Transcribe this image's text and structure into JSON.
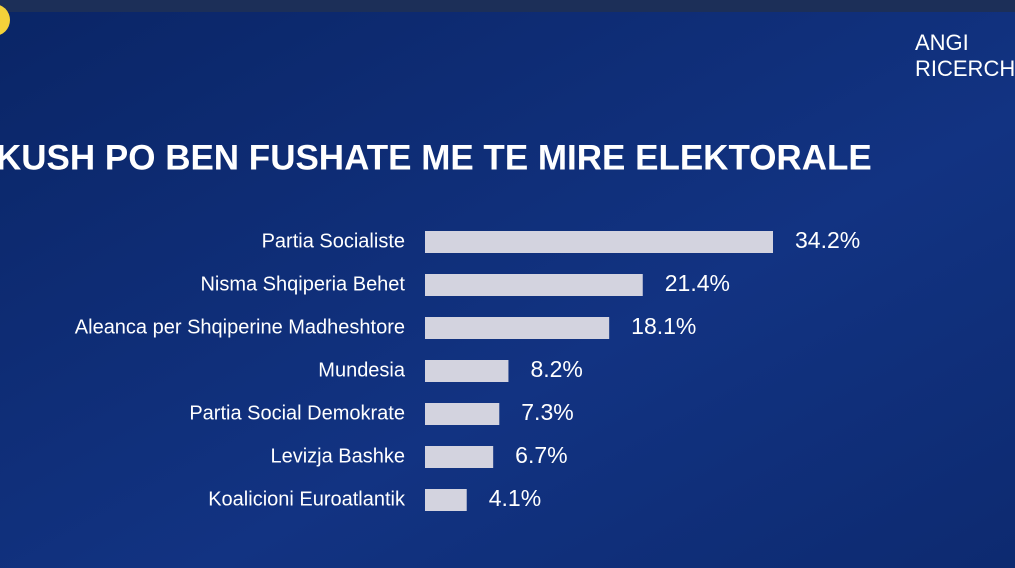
{
  "chart_data": {
    "type": "bar",
    "orientation": "horizontal",
    "title": "KUSH PO BEN FUSHATE ME TE MIRE ELEKTORALE",
    "logo": [
      "ANGI",
      "RICERCHE"
    ],
    "categories": [
      "Partia Socialiste",
      "Nisma Shqiperia Behet",
      "Aleanca per Shqiperine Madheshtore",
      "Mundesia",
      "Partia Social Demokrate",
      "Levizja Bashke",
      "Koalicioni Euroatlantik"
    ],
    "values": [
      34.2,
      21.4,
      18.1,
      8.2,
      7.3,
      6.7,
      4.1
    ],
    "value_labels": [
      "34.2%",
      "21.4%",
      "18.1%",
      "8.2%",
      "7.3%",
      "6.7%",
      "4.1%"
    ],
    "color": "#d3d3df"
  }
}
